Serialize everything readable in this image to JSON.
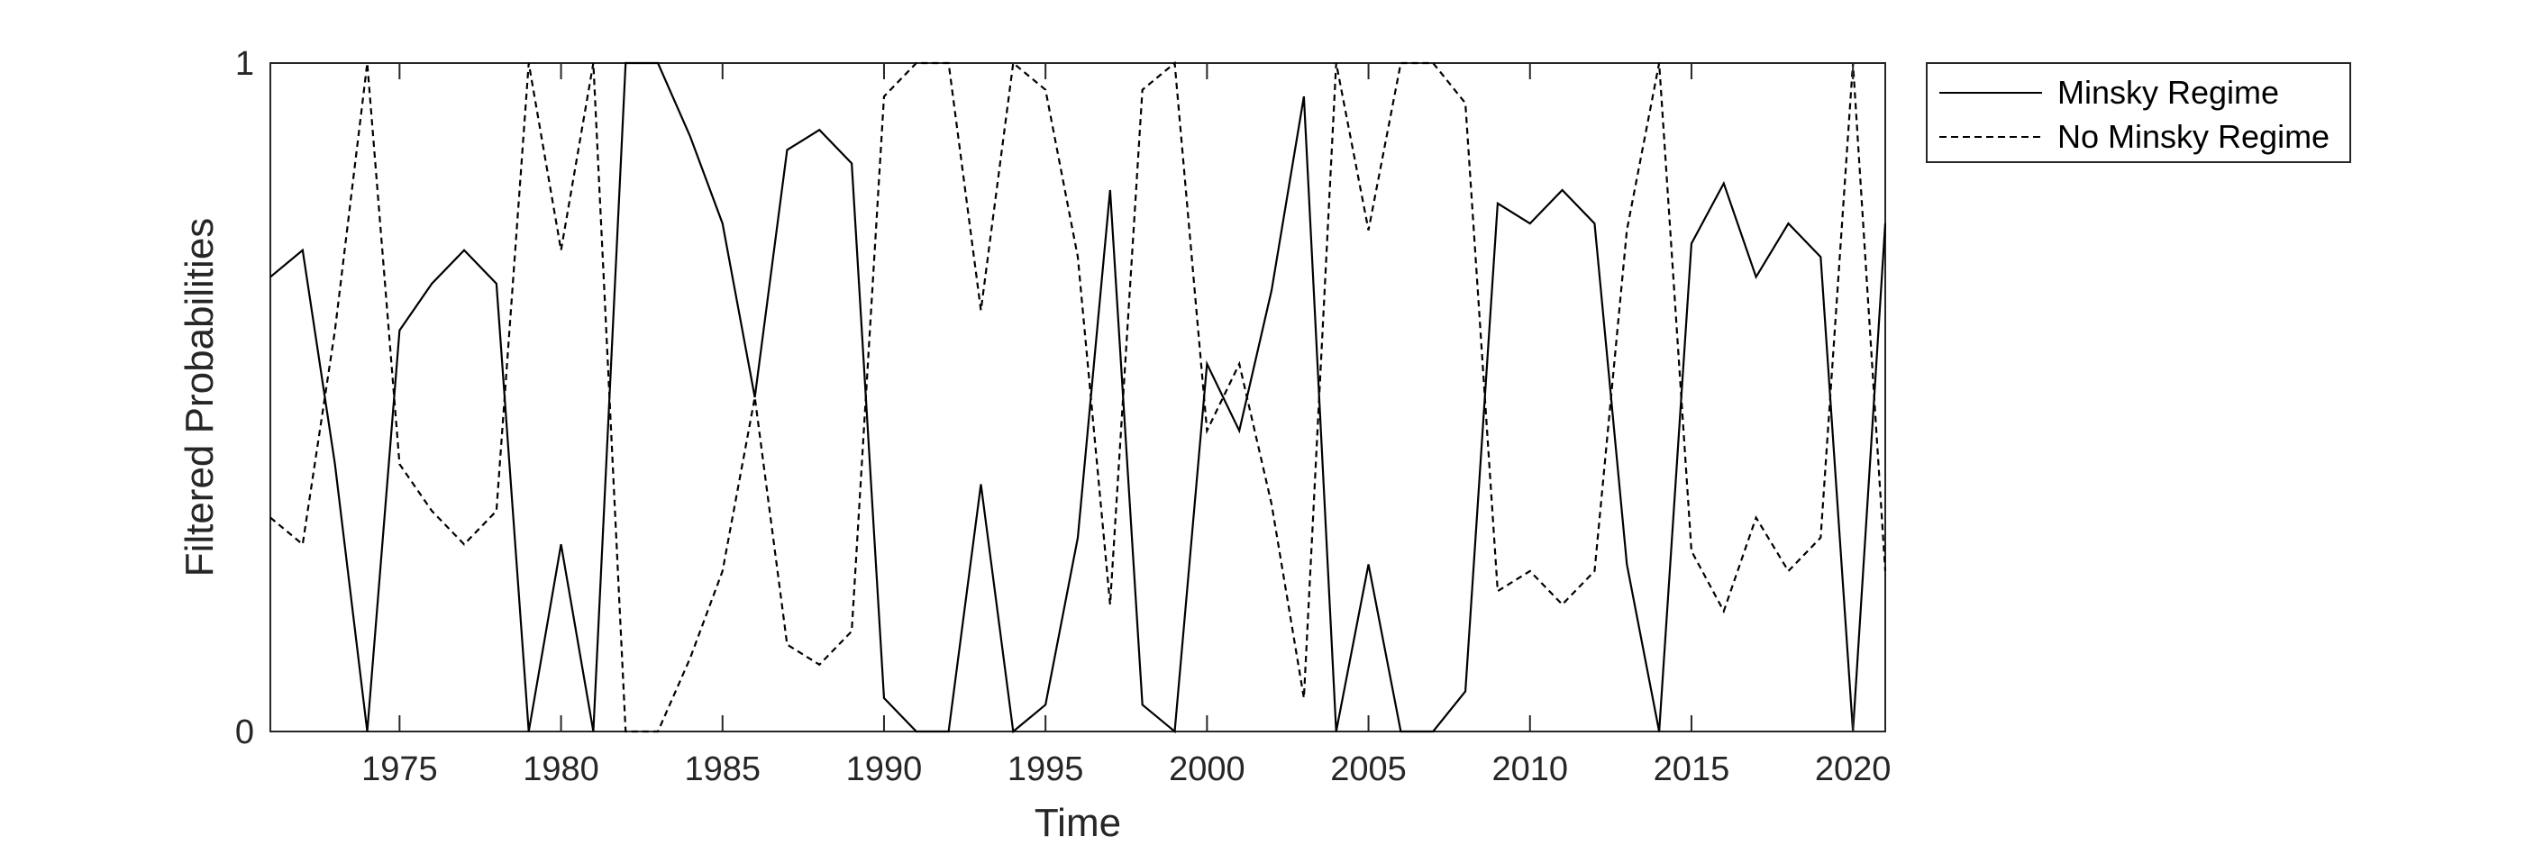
{
  "chart_data": {
    "type": "line",
    "title": "",
    "xlabel": "Time",
    "ylabel": "Filtered Probabilities",
    "xlim": [
      1971,
      2021
    ],
    "ylim": [
      0,
      1
    ],
    "xticks": [
      "1975",
      "1980",
      "1985",
      "1990",
      "1995",
      "2000",
      "2005",
      "2010",
      "2015",
      "2020"
    ],
    "yticks": [
      "0",
      "1"
    ],
    "grid": false,
    "legend_position": "outside-top-right",
    "x": [
      1971,
      1972,
      1973,
      1974,
      1975,
      1976,
      1977,
      1978,
      1979,
      1980,
      1981,
      1982,
      1983,
      1984,
      1985,
      1986,
      1987,
      1988,
      1989,
      1990,
      1991,
      1992,
      1993,
      1994,
      1995,
      1996,
      1997,
      1998,
      1999,
      2000,
      2001,
      2002,
      2003,
      2004,
      2005,
      2006,
      2007,
      2008,
      2009,
      2010,
      2011,
      2012,
      2013,
      2014,
      2015,
      2016,
      2017,
      2018,
      2019,
      2020,
      2021
    ],
    "series": [
      {
        "name": "Minsky Regime",
        "style": "solid",
        "color": "#000000",
        "values": [
          0.68,
          0.72,
          0.4,
          0.0,
          0.6,
          0.67,
          0.72,
          0.67,
          0.0,
          0.28,
          0.0,
          1.0,
          1.0,
          0.89,
          0.76,
          0.5,
          0.87,
          0.9,
          0.85,
          0.05,
          0.0,
          0.0,
          0.37,
          0.0,
          0.04,
          0.29,
          0.81,
          0.04,
          0.0,
          0.55,
          0.45,
          0.66,
          0.95,
          0.0,
          0.25,
          0.0,
          0.0,
          0.06,
          0.79,
          0.76,
          0.81,
          0.76,
          0.25,
          0.0,
          0.73,
          0.82,
          0.68,
          0.76,
          0.71,
          0.0,
          0.76
        ]
      },
      {
        "name": "No Minsky Regime",
        "style": "dashed",
        "color": "#000000",
        "values": [
          0.32,
          0.28,
          0.6,
          1.0,
          0.4,
          0.33,
          0.28,
          0.33,
          1.0,
          0.72,
          1.0,
          0.0,
          0.0,
          0.11,
          0.24,
          0.5,
          0.13,
          0.1,
          0.15,
          0.95,
          1.0,
          1.0,
          0.63,
          1.0,
          0.96,
          0.71,
          0.19,
          0.96,
          1.0,
          0.45,
          0.55,
          0.34,
          0.05,
          1.0,
          0.75,
          1.0,
          1.0,
          0.94,
          0.21,
          0.24,
          0.19,
          0.24,
          0.75,
          1.0,
          0.27,
          0.18,
          0.32,
          0.24,
          0.29,
          1.0,
          0.24
        ]
      }
    ]
  }
}
